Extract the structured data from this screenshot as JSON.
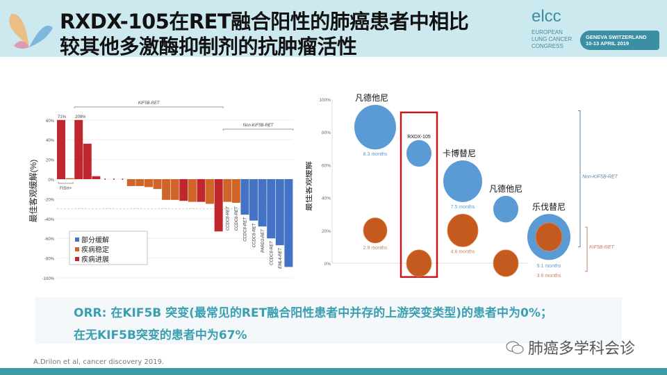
{
  "header": {
    "title_line1": "RXDX-105在RET融合阳性的肺癌患者中相比",
    "title_line2": "较其他多激酶抑制剂的抗肿瘤活性",
    "logo": {
      "name": "elcc",
      "sub": [
        "EUROPEAN",
        "LUNG CANCER",
        "CONGRESS"
      ],
      "location": "GENEVA SWITZERLAND",
      "dates": "10-13 APRIL 2019"
    }
  },
  "chart_data": [
    {
      "type": "bar",
      "title": "",
      "ylabel": "最佳客观缓解(%)",
      "ylim": [
        -100,
        60
      ],
      "yticks": [
        "60%",
        "40%",
        "20%",
        "0%",
        "-20%",
        "-40%",
        "-60%",
        "-80%",
        "-100%"
      ],
      "brackets": {
        "kif5b": "KIF5B-RET",
        "non_kif5b": "Non-KIF5B-RET",
        "fish": "FISH+"
      },
      "cap_labels": [
        "71%",
        "209%"
      ],
      "legend": [
        {
          "label": "部分缓解",
          "color": "#4472c4"
        },
        {
          "label": "疾病稳定",
          "color": "#d0652a"
        },
        {
          "label": "疾病进展",
          "color": "#c0272d"
        }
      ],
      "bars": [
        {
          "v": 71,
          "c": 2,
          "cap": 0
        },
        {
          "v": 1,
          "c": 1
        },
        {
          "v": 209,
          "c": 2,
          "cap": 1
        },
        {
          "v": 36,
          "c": 2
        },
        {
          "v": 3,
          "c": 2
        },
        {
          "v": null
        },
        {
          "v": null
        },
        {
          "v": null
        },
        {
          "v": -7,
          "c": 1
        },
        {
          "v": -7,
          "c": 1
        },
        {
          "v": -8,
          "c": 1
        },
        {
          "v": -10,
          "c": 1
        },
        {
          "v": -21,
          "c": 1
        },
        {
          "v": -21,
          "c": 1
        },
        {
          "v": -22,
          "c": 2
        },
        {
          "v": -23,
          "c": 1
        },
        {
          "v": -23,
          "c": 2
        },
        {
          "v": -25,
          "c": 1
        },
        {
          "v": -53,
          "c": 2
        },
        {
          "v": -23,
          "c": 1,
          "label": "CCDC6-RET"
        },
        {
          "v": -24,
          "c": 1,
          "label": "CCDC6-RET"
        },
        {
          "v": -36,
          "c": 0,
          "label": "CCDC6-RET"
        },
        {
          "v": -42,
          "c": 0,
          "label": "CCDC6-RET"
        },
        {
          "v": -48,
          "c": 0,
          "label": "PARD3-RET"
        },
        {
          "v": -60,
          "c": 0,
          "label": "CCDC6-RET"
        },
        {
          "v": -67,
          "c": 0,
          "label": "EML4-RET"
        },
        {
          "v": -89,
          "c": 0,
          "label": "EML4-RET"
        }
      ]
    },
    {
      "type": "scatter",
      "title": "",
      "ylabel": "最佳客观缓解",
      "ylim": [
        0,
        100
      ],
      "yticks": [
        "100%",
        "80%",
        "60%",
        "40%",
        "20%",
        "0%"
      ],
      "groups": [
        "Non-KIF5B-RET",
        "KIF5B-RET"
      ],
      "drugs": [
        {
          "name": "凡德他尼",
          "non": {
            "y": 83,
            "size": 30,
            "months": "8.3 months"
          },
          "kif": {
            "y": 20,
            "size": 17,
            "months": "2.9 months"
          }
        },
        {
          "name": "RXDX-105",
          "highlight": true,
          "non": {
            "y": 67,
            "size": 18
          },
          "kif": {
            "y": 0,
            "size": 18
          }
        },
        {
          "name": "卡博替尼",
          "non": {
            "y": 50,
            "size": 28,
            "months": "7.5 months"
          },
          "kif": {
            "y": 20,
            "size": 22,
            "months": "4.6 months"
          }
        },
        {
          "name": "凡德他尼",
          "non": {
            "y": 33,
            "size": 18
          },
          "kif": {
            "y": 0,
            "size": 18
          }
        },
        {
          "name": "乐伐替尼",
          "non": {
            "y": 16,
            "size": 31,
            "months": "9.1 months"
          },
          "kif": {
            "y": 16,
            "size": 19,
            "months": "3.6 months"
          }
        }
      ],
      "colors": {
        "non": "#5b9bd5",
        "kif": "#c55a1f"
      }
    }
  ],
  "orr": {
    "line1": "ORR: 在KIF5B 突变(最常见的RET融合阳性患者中并存的上游突变类型)的患者中为0%；",
    "line2": "在无KIF5B突变的患者中为67%"
  },
  "citation": "A.Drilon et al, cancer discovery 2019.",
  "watermark": "肺癌多学科会诊"
}
